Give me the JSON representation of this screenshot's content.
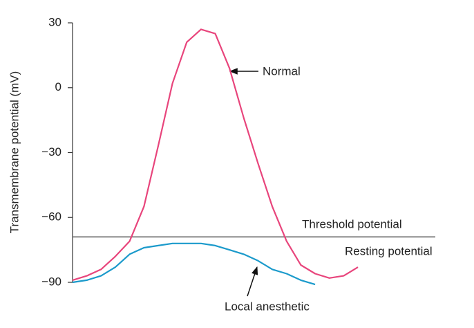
{
  "chart_data": {
    "type": "line",
    "y_label": "Transmembrane potential (mV)",
    "categories": [
      null,
      null,
      null,
      null,
      null,
      null,
      null,
      null,
      null,
      null,
      null,
      null,
      null,
      null,
      null,
      null,
      null,
      null,
      null,
      null,
      null
    ],
    "series": [
      {
        "name": "Normal",
        "color": "#e8457c",
        "values": [
          -89,
          -87,
          -84,
          -78,
          -71,
          -55,
          -27,
          2,
          21,
          27,
          25,
          9,
          -14,
          -35,
          -55,
          -71,
          -82,
          -86,
          -88,
          -87,
          -83
        ]
      },
      {
        "name": "Local anesthetic",
        "color": "#1b9acb",
        "values": [
          -90,
          -89,
          -87,
          -83,
          -77,
          -74,
          -73,
          -72,
          -72,
          -72,
          -73,
          -75,
          -77,
          -80,
          -84,
          -86,
          -89,
          -91,
          null,
          null,
          null
        ]
      }
    ],
    "threshold": {
      "label": "Threshold potential",
      "value": -69,
      "color": "#555555"
    },
    "annotations": [
      "Resting potential"
    ],
    "ylim": [
      -90,
      30
    ],
    "yticks": [
      {
        "value": 30,
        "label": "30"
      },
      {
        "value": 0,
        "label": "0"
      },
      {
        "value": -30,
        "label": "−30"
      },
      {
        "value": -60,
        "label": "−60"
      },
      {
        "value": -90,
        "label": "−90"
      }
    ]
  }
}
